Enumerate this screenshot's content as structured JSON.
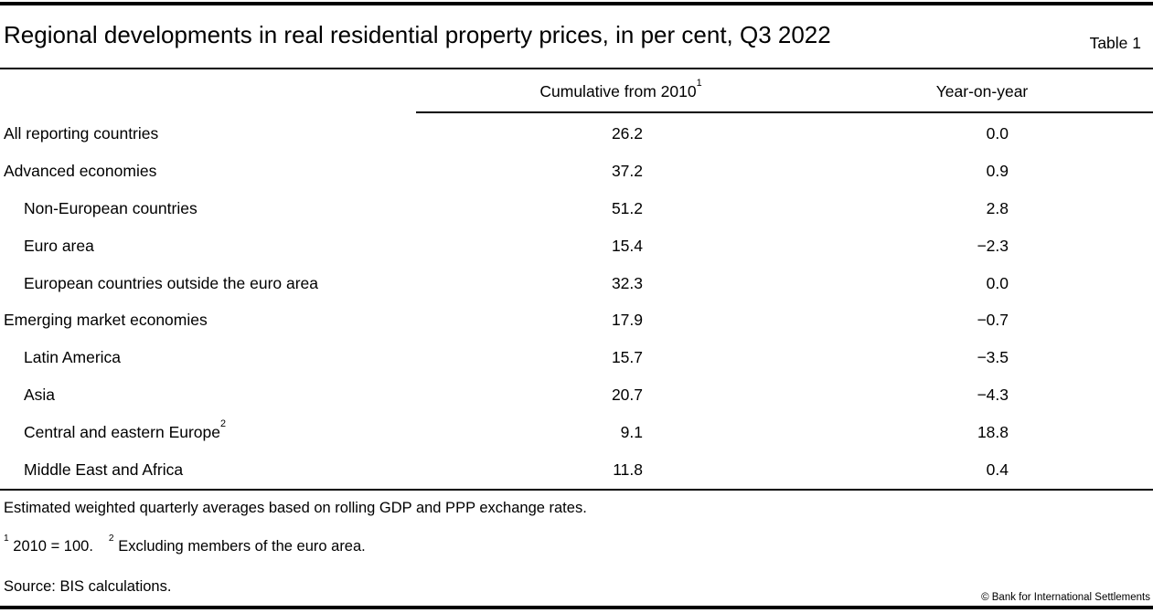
{
  "table_meta": {
    "title": "Regional developments in real residential property prices, in per cent, Q3 2022",
    "table_label": "Table 1"
  },
  "columns": {
    "col1_label": "Cumulative from 2010",
    "col1_sup": "1",
    "col2_label": "Year-on-year"
  },
  "rows": [
    {
      "label": "All reporting countries",
      "sup": "",
      "indent": false,
      "cumulative": "26.2",
      "yoy": "0.0"
    },
    {
      "label": "Advanced economies",
      "sup": "",
      "indent": false,
      "cumulative": "37.2",
      "yoy": "0.9"
    },
    {
      "label": "Non-European countries",
      "sup": "",
      "indent": true,
      "cumulative": "51.2",
      "yoy": "2.8"
    },
    {
      "label": "Euro area",
      "sup": "",
      "indent": true,
      "cumulative": "15.4",
      "yoy": "−2.3"
    },
    {
      "label": "European countries outside the euro area",
      "sup": "",
      "indent": true,
      "cumulative": "32.3",
      "yoy": "0.0"
    },
    {
      "label": "Emerging market economies",
      "sup": "",
      "indent": false,
      "cumulative": "17.9",
      "yoy": "−0.7"
    },
    {
      "label": "Latin America",
      "sup": "",
      "indent": true,
      "cumulative": "15.7",
      "yoy": "−3.5"
    },
    {
      "label": "Asia",
      "sup": "",
      "indent": true,
      "cumulative": "20.7",
      "yoy": "−4.3"
    },
    {
      "label": "Central and eastern Europe",
      "sup": "2",
      "indent": true,
      "cumulative": "9.1",
      "yoy": "18.8"
    },
    {
      "label": "Middle East and Africa",
      "sup": "",
      "indent": true,
      "cumulative": "11.8",
      "yoy": "0.4"
    }
  ],
  "footnotes": {
    "methodology": "Estimated weighted quarterly averages based on rolling GDP and PPP exchange rates.",
    "note1_marker": "1",
    "note1_text": "2010 = 100.",
    "note2_marker": "2",
    "note2_text": "Excluding members of the euro area.",
    "source": "Source: BIS calculations.",
    "copyright": "© Bank for International Settlements"
  },
  "chart_data": {
    "type": "table",
    "title": "Regional developments in real residential property prices, in per cent, Q3 2022",
    "columns": [
      "Region",
      "Cumulative from 2010",
      "Year-on-year"
    ],
    "rows": [
      [
        "All reporting countries",
        26.2,
        0.0
      ],
      [
        "Advanced economies",
        37.2,
        0.9
      ],
      [
        "Non-European countries",
        51.2,
        2.8
      ],
      [
        "Euro area",
        15.4,
        -2.3
      ],
      [
        "European countries outside the euro area",
        32.3,
        0.0
      ],
      [
        "Emerging market economies",
        17.9,
        -0.7
      ],
      [
        "Latin America",
        15.7,
        -3.5
      ],
      [
        "Asia",
        20.7,
        -4.3
      ],
      [
        "Central and eastern Europe",
        9.1,
        18.8
      ],
      [
        "Middle East and Africa",
        11.8,
        0.4
      ]
    ]
  }
}
